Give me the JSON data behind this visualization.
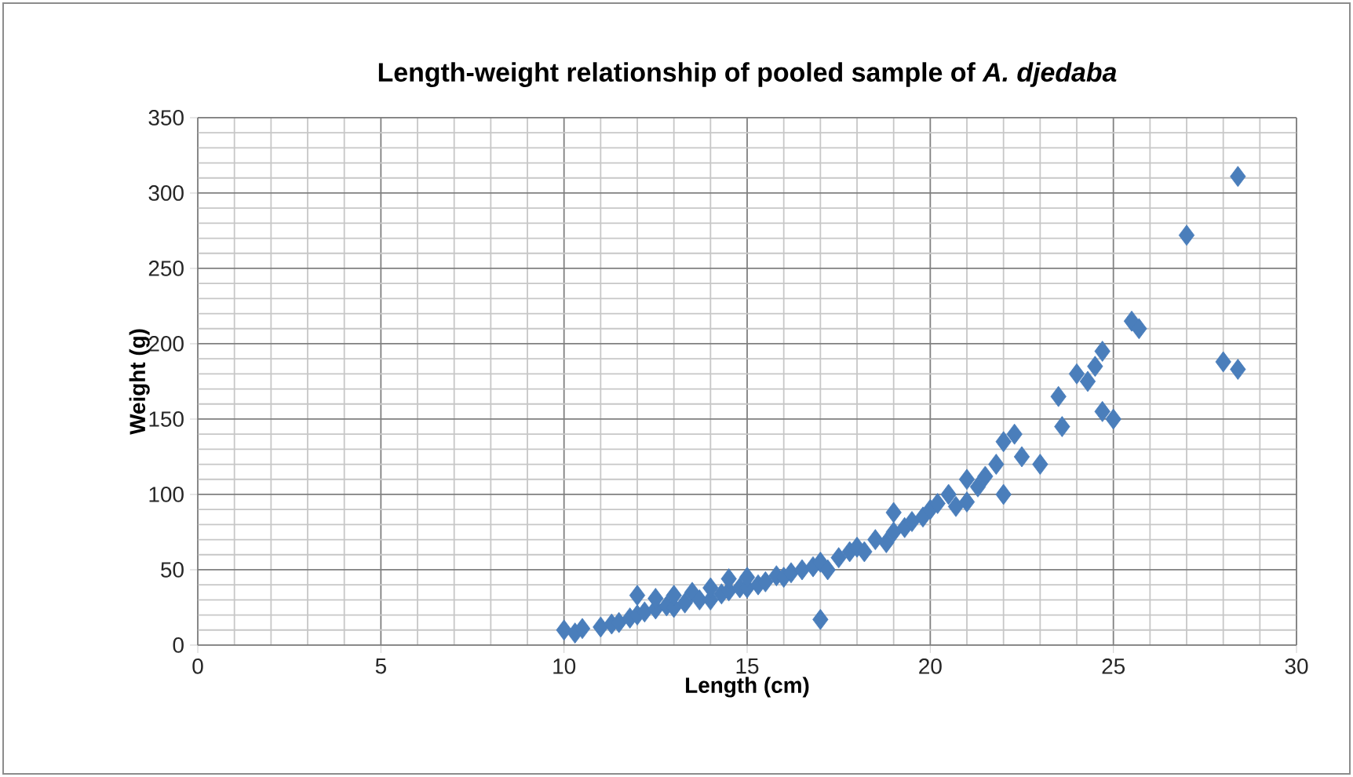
{
  "chart_data": {
    "type": "scatter",
    "title": "Length-weight relationship of pooled sample of *A. djedaba*",
    "xlabel": "Length (cm)",
    "ylabel": "Weight (g)",
    "xlim": [
      0,
      30
    ],
    "xticks": [
      0,
      5,
      10,
      15,
      20,
      25,
      30
    ],
    "ylim": [
      0,
      350
    ],
    "yticks": [
      0,
      50,
      100,
      150,
      200,
      250,
      300,
      350
    ],
    "grid": true,
    "marker": "diamond",
    "series": [
      {
        "color": "#4a7ebb",
        "x": [
          10,
          10.3,
          10.5,
          11,
          11.3,
          11.5,
          11.8,
          12,
          12,
          12.2,
          12.5,
          12.5,
          12.8,
          13,
          13,
          13.3,
          13.5,
          13.7,
          14,
          14,
          14.3,
          14.5,
          14.5,
          14.8,
          15,
          15,
          15.3,
          15.5,
          15.8,
          16,
          16.2,
          16.5,
          16.8,
          17,
          17,
          17.2,
          17.5,
          17.8,
          18,
          18.2,
          18.5,
          18.8,
          19,
          19,
          19.3,
          19.5,
          19.8,
          20,
          20.2,
          20.5,
          20.7,
          21,
          21,
          21.3,
          21.5,
          21.8,
          22,
          22,
          22.3,
          22.5,
          23,
          23.5,
          23.6,
          24,
          24.3,
          24.5,
          24.7,
          24.7,
          25,
          25.5,
          25.7,
          27,
          28,
          28.4,
          28.4
        ],
        "values": [
          10,
          8,
          11,
          12,
          14,
          15,
          18,
          20,
          33,
          22,
          24,
          31,
          26,
          25,
          33,
          28,
          35,
          30,
          30,
          38,
          34,
          36,
          44,
          38,
          38,
          45,
          40,
          42,
          46,
          45,
          48,
          50,
          52,
          55,
          17,
          50,
          58,
          62,
          65,
          62,
          70,
          68,
          75,
          88,
          78,
          82,
          85,
          90,
          94,
          100,
          92,
          95,
          110,
          105,
          112,
          120,
          135,
          100,
          140,
          125,
          120,
          165,
          145,
          180,
          175,
          185,
          195,
          155,
          150,
          215,
          210,
          272,
          188,
          183,
          311
        ]
      }
    ]
  }
}
